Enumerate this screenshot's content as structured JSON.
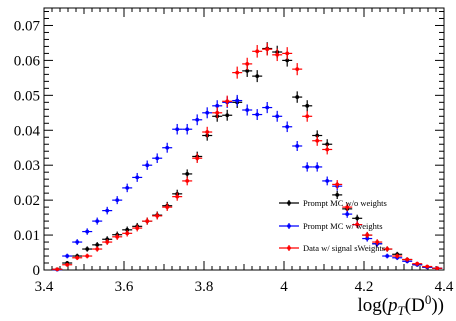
{
  "chart_data": {
    "type": "scatter",
    "title": "",
    "xlabel": "log(p_T(D^0))",
    "ylabel": "",
    "xlim": [
      3.4,
      4.4
    ],
    "ylim": [
      0,
      0.075
    ],
    "x_ticks": [
      3.4,
      3.6,
      3.8,
      4.0,
      4.2,
      4.4
    ],
    "x_tick_labels": [
      "3.4",
      "3.6",
      "3.8",
      "4",
      "4.2",
      "4.4"
    ],
    "y_ticks": [
      0,
      0.01,
      0.02,
      0.03,
      0.04,
      0.05,
      0.06,
      0.07
    ],
    "y_tick_labels": [
      "0",
      "0.01",
      "0.02",
      "0.03",
      "0.04",
      "0.05",
      "0.06",
      "0.07"
    ],
    "grid": false,
    "legend_position": "bottom-right",
    "x": [
      3.433,
      3.458,
      3.483,
      3.508,
      3.533,
      3.558,
      3.583,
      3.608,
      3.633,
      3.658,
      3.683,
      3.708,
      3.733,
      3.758,
      3.783,
      3.808,
      3.833,
      3.858,
      3.883,
      3.908,
      3.933,
      3.958,
      3.983,
      4.008,
      4.033,
      4.058,
      4.083,
      4.108,
      4.133,
      4.158,
      4.183,
      4.208,
      4.233,
      4.258,
      4.283,
      4.308,
      4.333,
      4.358,
      4.383
    ],
    "series": [
      {
        "name": "Prompt MC w/o weights",
        "color": "#000000",
        "values": [
          0.0002,
          0.002,
          0.004,
          0.006,
          0.0072,
          0.0088,
          0.0101,
          0.0115,
          0.0125,
          0.014,
          0.0157,
          0.0184,
          0.0218,
          0.0275,
          0.0325,
          0.0385,
          0.044,
          0.0443,
          0.048,
          0.057,
          0.0555,
          0.0634,
          0.0624,
          0.06,
          0.0495,
          0.047,
          0.0385,
          0.036,
          0.0215,
          0.0175,
          0.0148,
          0.01,
          0.0075,
          0.006,
          0.0045,
          0.003,
          0.0015,
          0.0008,
          0.0005
        ]
      },
      {
        "name": "Prompt MC w/ weights",
        "color": "#0000ff",
        "values": [
          0.0001,
          0.004,
          0.008,
          0.011,
          0.014,
          0.017,
          0.02,
          0.0235,
          0.0265,
          0.03,
          0.032,
          0.035,
          0.0403,
          0.0403,
          0.043,
          0.045,
          0.047,
          0.048,
          0.0485,
          0.0458,
          0.0445,
          0.0465,
          0.044,
          0.041,
          0.0355,
          0.0295,
          0.0295,
          0.0255,
          0.024,
          0.016,
          0.013,
          0.009,
          0.0075,
          0.004,
          0.0035,
          0.0025,
          0.0015,
          0.0008,
          0.0005
        ]
      },
      {
        "name": "Data w/ signal sWeights",
        "color": "#ff0000",
        "values": [
          0.0002,
          0.0015,
          0.0035,
          0.004,
          0.006,
          0.008,
          0.0095,
          0.0105,
          0.012,
          0.014,
          0.0155,
          0.018,
          0.021,
          0.0255,
          0.032,
          0.0395,
          0.045,
          0.0483,
          0.0565,
          0.059,
          0.0626,
          0.0632,
          0.0616,
          0.062,
          0.0575,
          0.044,
          0.037,
          0.0345,
          0.0245,
          0.018,
          0.013,
          0.01,
          0.008,
          0.006,
          0.004,
          0.003,
          0.0018,
          0.001,
          0.0005
        ]
      }
    ]
  }
}
